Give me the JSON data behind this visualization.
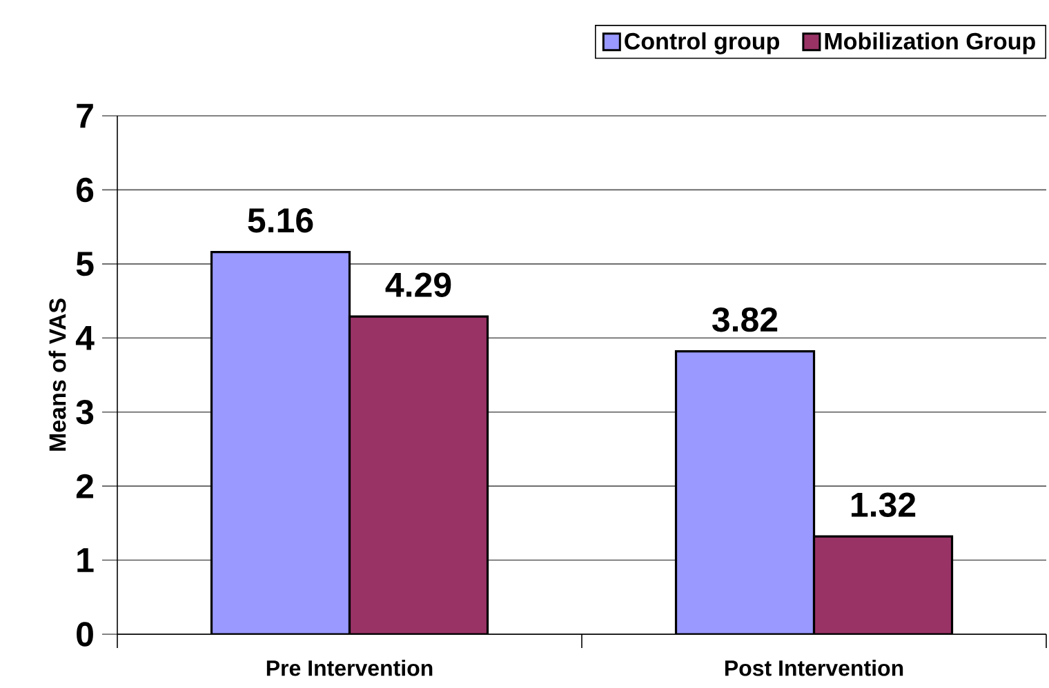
{
  "chart_data": {
    "type": "bar",
    "categories": [
      "Pre Intervention",
      "Post Intervention"
    ],
    "series": [
      {
        "name": "Control group",
        "color": "#9999ff",
        "values": [
          5.16,
          3.82
        ]
      },
      {
        "name": "Mobilization Group",
        "color": "#993366",
        "values": [
          4.29,
          1.32
        ]
      }
    ],
    "ylabel": "Means of VAS",
    "ylim": [
      0,
      7
    ],
    "yticks": [
      0,
      1,
      2,
      3,
      4,
      5,
      6,
      7
    ],
    "grid": "y",
    "legend": "top right",
    "data_labels": true
  }
}
